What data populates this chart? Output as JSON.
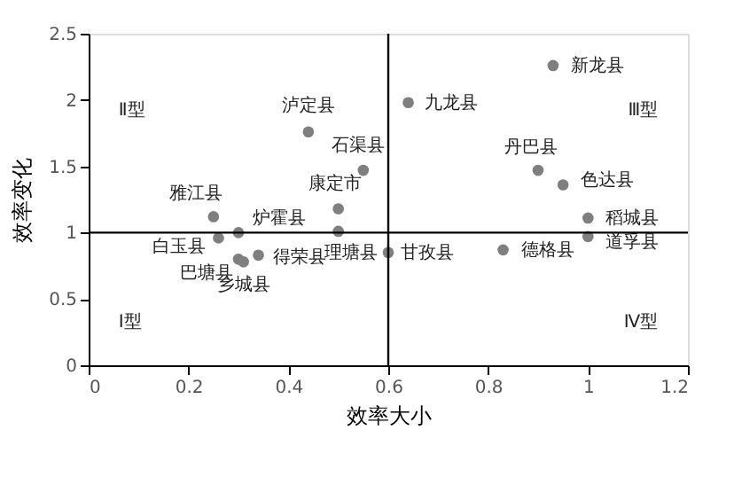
{
  "chart_data": {
    "type": "scatter",
    "xlabel": "效率大小",
    "ylabel": "效率变化",
    "x": [
      0.93,
      0.64,
      0.9,
      0.95,
      1.0,
      1.0,
      0.83,
      0.6,
      0.44,
      0.55,
      0.5,
      0.5,
      0.25,
      0.3,
      0.26,
      0.3,
      0.31,
      0.34
    ],
    "series": [
      {
        "color": "#7f7f7f",
        "values": [
          2.26,
          1.98,
          1.47,
          1.36,
          1.11,
          0.97,
          0.87,
          0.85,
          1.76,
          1.47,
          1.18,
          1.01,
          1.12,
          1.0,
          0.96,
          0.8,
          0.78,
          0.83
        ]
      }
    ],
    "value_labels": [
      "新龙县",
      "九龙县",
      "丹巴县",
      "色达县",
      "稻城县",
      "道孚县",
      "德格县",
      "甘孜县",
      "泸定县",
      "石渠县",
      "康定市",
      "理塘县",
      "雅江县",
      "炉霍县",
      "白玉县",
      "巴塘县",
      "乡城县",
      "得荣县"
    ],
    "annotations": [
      "Ⅱ型",
      "Ⅲ型",
      "Ⅰ型",
      "Ⅳ型"
    ],
    "ref_lines": [
      {
        "axis": "x",
        "value": 0.6,
        "color": "#000000"
      },
      {
        "axis": "y",
        "value": 1,
        "color": "#000000"
      }
    ],
    "xlim": [
      0,
      1.2
    ],
    "xticks": [
      0,
      0.2,
      0.4,
      0.6,
      0.8,
      1,
      1.2
    ],
    "ylim": [
      0,
      2.5
    ],
    "yticks": [
      0,
      0.5,
      1,
      1.5,
      2,
      2.5
    ],
    "grid": false,
    "marker": "circle"
  }
}
